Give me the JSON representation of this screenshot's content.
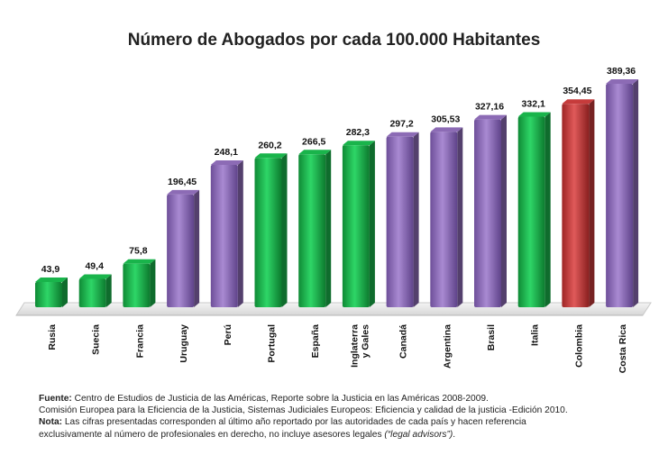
{
  "chart_data": {
    "type": "bar",
    "title": "Número de Abogados por cada 100.000 Habitantes",
    "categories": [
      "Rusia",
      "Suecia",
      "Francia",
      "Uruguay",
      "Perú",
      "Portugal",
      "España",
      "Inglaterra y Gales",
      "Canadá",
      "Argentina",
      "Brasil",
      "Italia",
      "Colombia",
      "Costa Rica"
    ],
    "category_lines": [
      [
        "Rusia"
      ],
      [
        "Suecia"
      ],
      [
        "Francia"
      ],
      [
        "Uruguay"
      ],
      [
        "Perú"
      ],
      [
        "Portugal"
      ],
      [
        "España"
      ],
      [
        "Inglaterra",
        "y Gales"
      ],
      [
        "Canadá"
      ],
      [
        "Argentina"
      ],
      [
        "Brasil"
      ],
      [
        "Italia"
      ],
      [
        "Colombia"
      ],
      [
        "Costa Rica"
      ]
    ],
    "values": [
      43.9,
      49.4,
      75.8,
      196.45,
      248.1,
      260.2,
      266.5,
      282.3,
      297.2,
      305.53,
      327.16,
      332.1,
      354.45,
      389.36
    ],
    "value_labels": [
      "43,9",
      "49,4",
      "75,8",
      "196,45",
      "248,1",
      "260,2",
      "266,5",
      "282,3",
      "297,2",
      "305,53",
      "327,16",
      "332,1",
      "354,45",
      "389,36"
    ],
    "bar_colors": [
      "#19b44b",
      "#19b44b",
      "#19b44b",
      "#8c6bb5",
      "#8c6bb5",
      "#19b44b",
      "#19b44b",
      "#19b44b",
      "#8c6bb5",
      "#8c6bb5",
      "#8c6bb5",
      "#19b44b",
      "#c63b3b",
      "#8c6bb5"
    ],
    "xlabel": "",
    "ylabel": "",
    "ylim": [
      0,
      400
    ],
    "grid": false,
    "legend": "none"
  },
  "notes": {
    "source_label": "Fuente:",
    "source_text": " Centro de Estudios de Justicia de las Américas, Reporte sobre la Justicia en las Américas  2008-2009.",
    "source_line2": "Comisión Europea para la Eficiencia de la Justicia, Sistemas Judiciales Europeos: Eficiencia y calidad de la justicia  -Edición 2010.",
    "note_label": "Nota:",
    "note_text": " Las cifras presentadas corresponden al último año reportado por las autoridades de  cada país y hacen referencia",
    "note_line2": "exclusivamente al número de profesionales en derecho, no incluye asesores legales ",
    "note_italic": "(“legal advisors”)",
    "note_end": "."
  }
}
